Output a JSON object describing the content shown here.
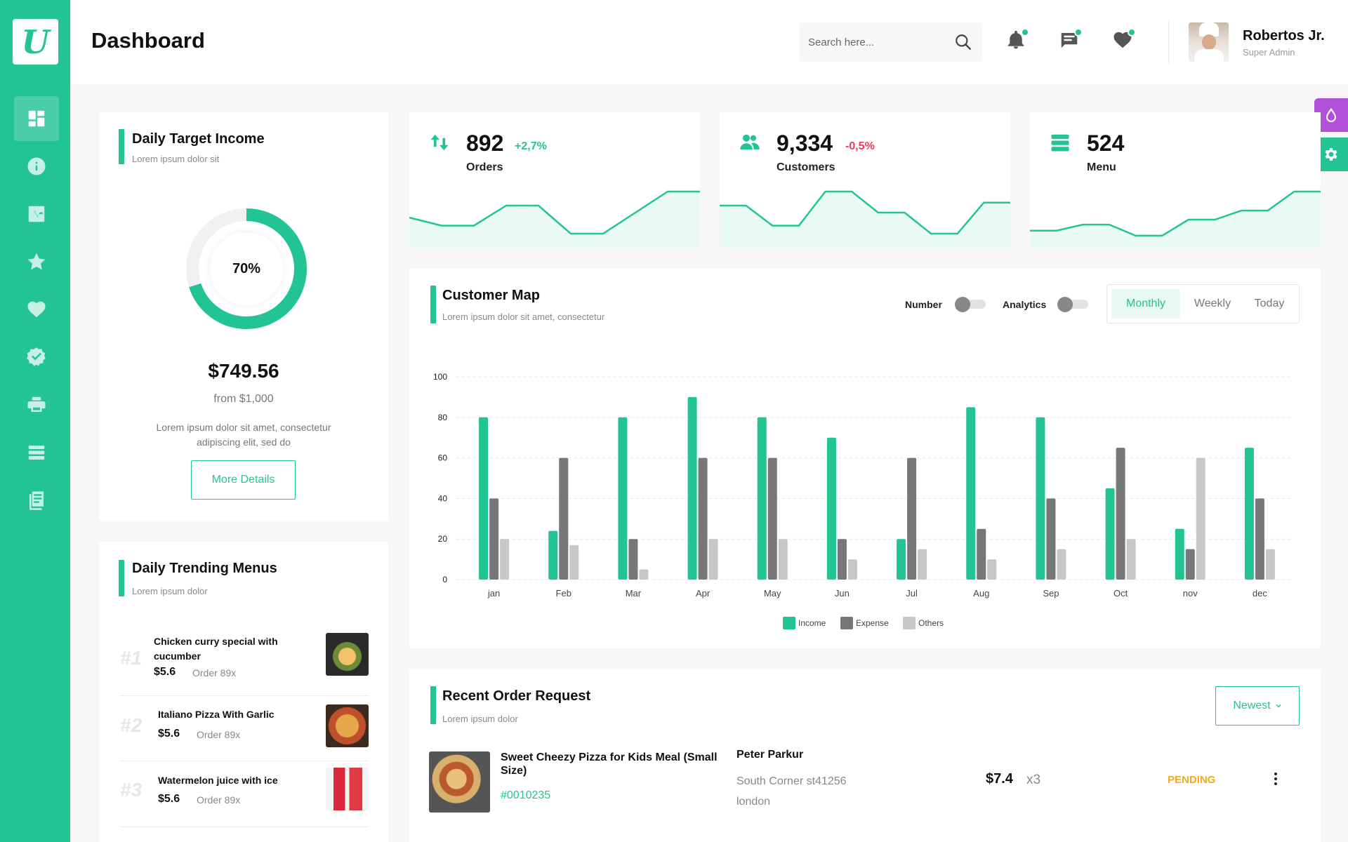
{
  "app": {
    "logo_letter": "U",
    "page_title": "Dashboard"
  },
  "colors": {
    "primary": "#22c493",
    "purple": "#b150d8",
    "positive": "#22c493",
    "negative": "#f4385b",
    "pending": "#f3a81f",
    "expense": "#777777",
    "others": "#c7c7c7"
  },
  "sidebar": {
    "items": [
      {
        "icon": "dashboard-icon",
        "active": true
      },
      {
        "icon": "info-icon",
        "active": false
      },
      {
        "icon": "chart-pulse-icon",
        "active": false
      },
      {
        "icon": "star-icon",
        "active": false
      },
      {
        "icon": "heart-icon",
        "active": false
      },
      {
        "icon": "badge-check-icon",
        "active": false
      },
      {
        "icon": "printer-icon",
        "active": false
      },
      {
        "icon": "list-icon",
        "active": false
      },
      {
        "icon": "document-icon",
        "active": false
      }
    ]
  },
  "header": {
    "search_placeholder": "Search here...",
    "icons": [
      "bell-icon",
      "chat-icon",
      "heart-icon"
    ],
    "user": {
      "name": "Robertos Jr.",
      "role": "Super Admin"
    }
  },
  "daily_target": {
    "title": "Daily Target Income",
    "subtitle": "Lorem ipsum dolor sit",
    "percent_label": "70%",
    "progress": 0.7,
    "amount": "$749.56",
    "from": "from $1,000",
    "description": "Lorem ipsum dolor sit amet, consectetur adipiscing elit, sed do",
    "button": "More Details"
  },
  "stats": [
    {
      "icon": "arrows-updown-icon",
      "value": "892",
      "change": "+2,7%",
      "change_type": "positive",
      "label": "Orders",
      "trend": [
        30,
        22,
        22,
        42,
        42,
        14,
        14,
        35,
        56,
        56
      ]
    },
    {
      "icon": "users-icon",
      "value": "9,334",
      "change": "-0,5%",
      "change_type": "negative",
      "label": "Customers",
      "trend": [
        42,
        42,
        22,
        22,
        56,
        56,
        35,
        35,
        14,
        14,
        45,
        45
      ]
    },
    {
      "icon": "menu-stack-icon",
      "value": "524",
      "change": "",
      "change_type": "",
      "label": "Menu",
      "trend": [
        17,
        17,
        23,
        23,
        12,
        12,
        28,
        28,
        37,
        37,
        56,
        56
      ]
    }
  ],
  "customer_map": {
    "title": "Customer Map",
    "subtitle": "Lorem ipsum dolor sit amet, consectetur",
    "toggles": [
      {
        "label": "Number",
        "on": false
      },
      {
        "label": "Analytics",
        "on": false
      }
    ],
    "tabs": [
      {
        "label": "Monthly",
        "active": true
      },
      {
        "label": "Weekly",
        "active": false
      },
      {
        "label": "Today",
        "active": false
      }
    ]
  },
  "chart_data": {
    "type": "bar",
    "categories": [
      "jan",
      "Feb",
      "Mar",
      "Apr",
      "May",
      "Jun",
      "Jul",
      "Aug",
      "Sep",
      "Oct",
      "nov",
      "dec"
    ],
    "series": [
      {
        "name": "Income",
        "color": "#22c493",
        "values": [
          80,
          24,
          80,
          90,
          80,
          70,
          20,
          85,
          80,
          45,
          25,
          65
        ]
      },
      {
        "name": "Expense",
        "color": "#777777",
        "values": [
          40,
          60,
          20,
          60,
          60,
          20,
          60,
          25,
          40,
          65,
          15,
          40
        ]
      },
      {
        "name": "Others",
        "color": "#c7c7c7",
        "values": [
          20,
          17,
          5,
          20,
          20,
          10,
          15,
          10,
          15,
          20,
          60,
          15
        ]
      }
    ],
    "ylim": [
      0,
      100
    ],
    "yticks": [
      0,
      20,
      40,
      60,
      80,
      100
    ],
    "grid": true,
    "legend": "bottom"
  },
  "trending": {
    "title": "Daily Trending Menus",
    "subtitle": "Lorem ipsum dolor",
    "items": [
      {
        "rank": "#1",
        "name": "Chicken curry special with cucumber",
        "price": "$5.6",
        "orders": "Order 89x"
      },
      {
        "rank": "#2",
        "name": "Italiano Pizza With Garlic",
        "price": "$5.6",
        "orders": "Order 89x"
      },
      {
        "rank": "#3",
        "name": "Watermelon juice with ice",
        "price": "$5.6",
        "orders": "Order 89x"
      }
    ]
  },
  "recent_orders": {
    "title": "Recent Order Request",
    "subtitle": "Lorem ipsum dolor",
    "filter": "Newest",
    "orders": [
      {
        "name": "Sweet Cheezy Pizza for Kids Meal (Small Size)",
        "id": "#0010235",
        "customer": "Peter Parkur",
        "address_line1": "South Corner st41256",
        "address_line2": "london",
        "price": "$7.4",
        "qty": "x3",
        "status": "PENDING"
      }
    ]
  }
}
